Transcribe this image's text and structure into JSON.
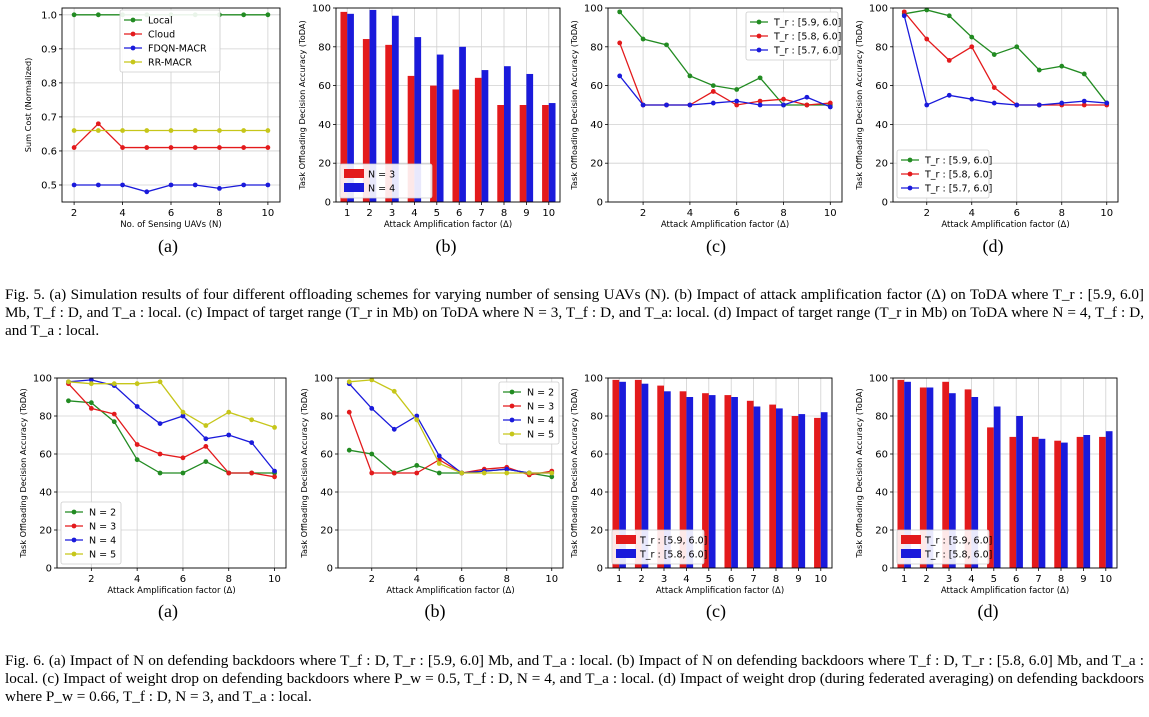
{
  "fig5": {
    "sublabels": [
      "(a)",
      "(b)",
      "(c)",
      "(d)"
    ],
    "caption": "Fig. 5.   (a) Simulation results of four different offloading schemes for varying number of sensing UAVs (N). (b) Impact of attack amplification factor (Δ) on ToDA where T_r : [5.9, 6.0] Mb, T_f : D, and T_a : local. (c) Impact of target range (T_r in Mb) on ToDA where N = 3, T_f : D, and T_a: local. (d) Impact of target range (T_r in Mb) on ToDA where N = 4, T_f : D, and T_a : local."
  },
  "fig6": {
    "sublabels": [
      "(a)",
      "(b)",
      "(c)",
      "(d)"
    ],
    "caption": "Fig. 6.   (a) Impact of N on defending backdoors where T_f : D, T_r : [5.9, 6.0] Mb, and T_a : local. (b) Impact of N on defending backdoors where T_f : D, T_r : [5.8, 6.0] Mb, and T_a : local. (c) Impact of weight drop on defending backdoors where P_w = 0.5, T_f : D, N = 4, and T_a : local. (d) Impact of weight drop (during federated averaging) on defending backdoors where P_w = 0.66, T_f : D, N = 3, and T_a : local."
  },
  "colors": {
    "green": "#228b22",
    "red": "#e31a1c",
    "blue": "#1a1adb",
    "olive": "#c6c61a"
  },
  "chart_data": [
    {
      "id": "fig5a",
      "type": "line",
      "xlabel": "No. of Sensing UAVs (N)",
      "ylabel": "Sum Cost (Normalized)",
      "xlim": [
        1.5,
        10.5
      ],
      "ylim": [
        0.45,
        1.02
      ],
      "xticks": [
        2,
        4,
        6,
        8,
        10
      ],
      "yticks": [
        0.5,
        0.6,
        0.7,
        0.8,
        0.9,
        1.0
      ],
      "ytick_labels": [
        "0.5",
        "0.6",
        "0.7",
        "0.8",
        "0.9",
        "1.0"
      ],
      "x": [
        2,
        3,
        4,
        5,
        6,
        7,
        8,
        9,
        10
      ],
      "legend": "top-center",
      "series": [
        {
          "name": "Local",
          "color": "green",
          "values": [
            1.0,
            1.0,
            1.0,
            1.0,
            1.0,
            1.0,
            1.0,
            1.0,
            1.0
          ]
        },
        {
          "name": "Cloud",
          "color": "red",
          "values": [
            0.61,
            0.68,
            0.61,
            0.61,
            0.61,
            0.61,
            0.61,
            0.61,
            0.61
          ]
        },
        {
          "name": "FDQN-MACR",
          "color": "blue",
          "values": [
            0.5,
            0.5,
            0.5,
            0.48,
            0.5,
            0.5,
            0.49,
            0.5,
            0.5
          ]
        },
        {
          "name": "RR-MACR",
          "color": "olive",
          "values": [
            0.66,
            0.66,
            0.66,
            0.66,
            0.66,
            0.66,
            0.66,
            0.66,
            0.66
          ]
        }
      ]
    },
    {
      "id": "fig5b",
      "type": "bar",
      "xlabel": "Attack Amplification factor (Δ)",
      "ylabel": "Task Offloading Decision Accuracy (ToDA)",
      "categories": [
        "1",
        "2",
        "3",
        "4",
        "5",
        "6",
        "7",
        "8",
        "9",
        "10"
      ],
      "ylim": [
        0,
        100
      ],
      "yticks": [
        0,
        20,
        40,
        60,
        80,
        100
      ],
      "legend": "lower-left",
      "series": [
        {
          "name": "N = 3",
          "color": "red",
          "values": [
            98,
            84,
            81,
            65,
            60,
            58,
            64,
            50,
            50,
            50
          ]
        },
        {
          "name": "N = 4",
          "color": "blue",
          "values": [
            97,
            99,
            96,
            85,
            76,
            80,
            68,
            70,
            66,
            51
          ]
        }
      ]
    },
    {
      "id": "fig5c",
      "type": "line",
      "xlabel": "Attack Amplification factor (Δ)",
      "ylabel": "Task Offloading Decision Accuracy (ToDA)",
      "xlim": [
        0.5,
        10.5
      ],
      "ylim": [
        0,
        100
      ],
      "xticks": [
        2,
        4,
        6,
        8,
        10
      ],
      "yticks": [
        0,
        20,
        40,
        60,
        80,
        100
      ],
      "x": [
        1,
        2,
        3,
        4,
        5,
        6,
        7,
        8,
        9,
        10
      ],
      "legend": "top-right",
      "series": [
        {
          "name": "T_r : [5.9, 6.0]",
          "color": "green",
          "values": [
            98,
            84,
            81,
            65,
            60,
            58,
            64,
            50,
            50,
            50
          ]
        },
        {
          "name": "T_r : [5.8, 6.0]",
          "color": "red",
          "values": [
            82,
            50,
            50,
            50,
            57,
            50,
            52,
            53,
            50,
            51
          ]
        },
        {
          "name": "T_r : [5.7, 6.0]",
          "color": "blue",
          "values": [
            65,
            50,
            50,
            50,
            51,
            52,
            50,
            50,
            54,
            49
          ]
        }
      ]
    },
    {
      "id": "fig5d",
      "type": "line",
      "xlabel": "Attack Amplification factor (Δ)",
      "ylabel": "Task Offloading Decision Accuracy (ToDA)",
      "xlim": [
        0.5,
        10.5
      ],
      "ylim": [
        0,
        100
      ],
      "xticks": [
        2,
        4,
        6,
        8,
        10
      ],
      "yticks": [
        0,
        20,
        40,
        60,
        80,
        100
      ],
      "x": [
        1,
        2,
        3,
        4,
        5,
        6,
        7,
        8,
        9,
        10
      ],
      "legend": "lower-left",
      "series": [
        {
          "name": "T_r : [5.9, 6.0]",
          "color": "green",
          "values": [
            97,
            99,
            96,
            85,
            76,
            80,
            68,
            70,
            66,
            51
          ]
        },
        {
          "name": "T_r : [5.8, 6.0]",
          "color": "red",
          "values": [
            98,
            84,
            73,
            80,
            59,
            50,
            50,
            50,
            50,
            50
          ]
        },
        {
          "name": "T_r : [5.7, 6.0]",
          "color": "blue",
          "values": [
            96,
            50,
            55,
            53,
            51,
            50,
            50,
            51,
            52,
            51
          ]
        }
      ]
    },
    {
      "id": "fig6a",
      "type": "line",
      "xlabel": "Attack Amplification factor (Δ)",
      "ylabel": "Task Offloading Decision Accuracy (ToDA)",
      "xlim": [
        0.5,
        10.5
      ],
      "ylim": [
        0,
        100
      ],
      "xticks": [
        2,
        4,
        6,
        8,
        10
      ],
      "yticks": [
        0,
        20,
        40,
        60,
        80,
        100
      ],
      "x": [
        1,
        2,
        3,
        4,
        5,
        6,
        7,
        8,
        9,
        10
      ],
      "legend": "lower-left",
      "series": [
        {
          "name": "N = 2",
          "color": "green",
          "values": [
            88,
            87,
            77,
            57,
            50,
            50,
            56,
            50,
            50,
            50
          ]
        },
        {
          "name": "N = 3",
          "color": "red",
          "values": [
            97,
            84,
            81,
            65,
            60,
            58,
            64,
            50,
            50,
            48
          ]
        },
        {
          "name": "N = 4",
          "color": "blue",
          "values": [
            98,
            99,
            96,
            85,
            76,
            80,
            68,
            70,
            66,
            51
          ]
        },
        {
          "name": "N = 5",
          "color": "olive",
          "values": [
            98,
            97,
            97,
            97,
            98,
            82,
            75,
            82,
            78,
            74
          ]
        }
      ]
    },
    {
      "id": "fig6b",
      "type": "line",
      "xlabel": "Attack Amplification factor (Δ)",
      "ylabel": "Task Offloading Decision Accuracy (ToDA)",
      "xlim": [
        0.5,
        10.5
      ],
      "ylim": [
        0,
        100
      ],
      "xticks": [
        2,
        4,
        6,
        8,
        10
      ],
      "yticks": [
        0,
        20,
        40,
        60,
        80,
        100
      ],
      "x": [
        1,
        2,
        3,
        4,
        5,
        6,
        7,
        8,
        9,
        10
      ],
      "legend": "top-right",
      "series": [
        {
          "name": "N = 2",
          "color": "green",
          "values": [
            62,
            60,
            50,
            54,
            50,
            50,
            51,
            52,
            50,
            48
          ]
        },
        {
          "name": "N = 3",
          "color": "red",
          "values": [
            82,
            50,
            50,
            50,
            57,
            50,
            52,
            53,
            49,
            51
          ]
        },
        {
          "name": "N = 4",
          "color": "blue",
          "values": [
            97,
            84,
            73,
            80,
            59,
            50,
            51,
            52,
            50,
            50
          ]
        },
        {
          "name": "N = 5",
          "color": "olive",
          "values": [
            98,
            99,
            93,
            78,
            55,
            50,
            50,
            50,
            50,
            50
          ]
        }
      ]
    },
    {
      "id": "fig6c",
      "type": "bar",
      "xlabel": "Attack Amplification factor (Δ)",
      "ylabel": "Task Offloading Decision Accuracy (ToDA)",
      "categories": [
        "1",
        "2",
        "3",
        "4",
        "5",
        "6",
        "7",
        "8",
        "9",
        "10"
      ],
      "ylim": [
        0,
        100
      ],
      "yticks": [
        0,
        20,
        40,
        60,
        80,
        100
      ],
      "legend": "lower-left",
      "series": [
        {
          "name": "T_r : [5.9, 6.0]",
          "color": "red",
          "values": [
            99,
            99,
            96,
            93,
            92,
            91,
            88,
            86,
            80,
            79
          ]
        },
        {
          "name": "T_r : [5.8, 6.0]",
          "color": "blue",
          "values": [
            98,
            97,
            93,
            90,
            91,
            90,
            85,
            84,
            81,
            82
          ]
        }
      ]
    },
    {
      "id": "fig6d",
      "type": "bar",
      "xlabel": "Attack Amplification factor (Δ)",
      "ylabel": "Task Offloading Decision Accuracy (ToDA)",
      "categories": [
        "1",
        "2",
        "3",
        "4",
        "5",
        "6",
        "7",
        "8",
        "9",
        "10"
      ],
      "ylim": [
        0,
        100
      ],
      "yticks": [
        0,
        20,
        40,
        60,
        80,
        100
      ],
      "legend": "lower-left",
      "series": [
        {
          "name": "T_r : [5.9, 6.0]",
          "color": "red",
          "values": [
            99,
            95,
            98,
            94,
            74,
            69,
            69,
            67,
            69,
            69
          ]
        },
        {
          "name": "T_r : [5.8, 6.0]",
          "color": "blue",
          "values": [
            98,
            95,
            92,
            90,
            85,
            80,
            68,
            66,
            70,
            72
          ]
        }
      ]
    }
  ]
}
